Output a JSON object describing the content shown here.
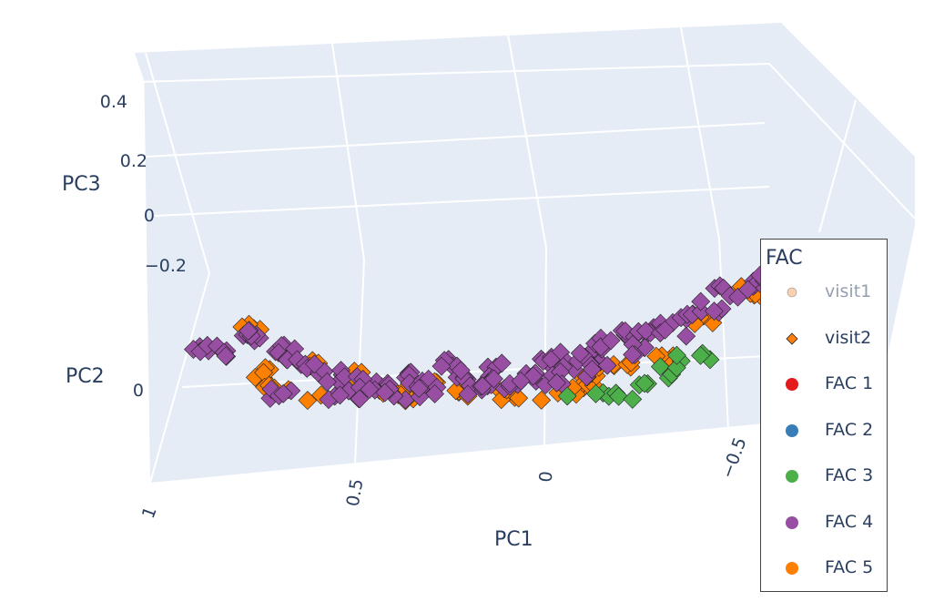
{
  "chart_data": {
    "type": "scatter",
    "dimensions": 3,
    "axes": {
      "x": {
        "label": "PC1",
        "ticks": [
          "1",
          "0.5",
          "0",
          "−0.5"
        ]
      },
      "y": {
        "label": "PC2",
        "ticks": [
          "0"
        ]
      },
      "z": {
        "label": "PC3",
        "ticks": [
          "0.4",
          "0.2",
          "0",
          "−0.2"
        ]
      }
    },
    "grid": true,
    "legend": {
      "title": "FAC",
      "placement": "right",
      "items": [
        {
          "label": "visit1",
          "symbol": "circle",
          "color": "#f4a460",
          "visible": false
        },
        {
          "label": "visit2",
          "symbol": "diamond",
          "color": "#ff7f0e",
          "visible": true
        },
        {
          "label": "FAC 1",
          "symbol": "circle",
          "color": "#e41a1c",
          "visible": true
        },
        {
          "label": "FAC 2",
          "symbol": "circle",
          "color": "#377eb8",
          "visible": true
        },
        {
          "label": "FAC 3",
          "symbol": "circle",
          "color": "#4daf4a",
          "visible": true
        },
        {
          "label": "FAC 4",
          "symbol": "circle",
          "color": "#984ea3",
          "visible": true
        },
        {
          "label": "FAC 5",
          "symbol": "circle",
          "color": "#ff7f00",
          "visible": true
        }
      ]
    },
    "series": [
      {
        "name": "FAC 4",
        "symbol": "diamond",
        "color": "#984ea3",
        "points": [
          [
            0.95,
            0.1,
            0.05
          ],
          [
            0.9,
            0.05,
            0.0
          ],
          [
            0.85,
            0.15,
            0.1
          ],
          [
            0.8,
            0.05,
            0.1
          ],
          [
            0.75,
            0.1,
            0.05
          ],
          [
            0.7,
            0.05,
            -0.05
          ],
          [
            0.65,
            0.0,
            -0.1
          ],
          [
            0.6,
            0.05,
            -0.1
          ],
          [
            0.55,
            0.0,
            -0.2
          ],
          [
            0.5,
            0.0,
            -0.15
          ],
          [
            0.45,
            -0.05,
            -0.2
          ],
          [
            0.4,
            0.05,
            -0.1
          ],
          [
            0.35,
            -0.05,
            -0.15
          ],
          [
            0.3,
            0.0,
            -0.05
          ],
          [
            0.25,
            0.0,
            -0.1
          ],
          [
            0.2,
            0.05,
            -0.05
          ],
          [
            0.15,
            -0.05,
            -0.15
          ],
          [
            0.1,
            0.0,
            -0.1
          ],
          [
            0.05,
            0.05,
            0.0
          ],
          [
            0.0,
            0.0,
            -0.05
          ],
          [
            -0.05,
            0.05,
            0.0
          ],
          [
            -0.1,
            0.0,
            0.05
          ],
          [
            -0.15,
            0.05,
            0.1
          ],
          [
            -0.2,
            0.0,
            0.1
          ],
          [
            -0.25,
            0.1,
            0.15
          ],
          [
            -0.3,
            0.05,
            0.2
          ],
          [
            -0.35,
            0.1,
            0.25
          ],
          [
            -0.4,
            0.05,
            0.3
          ],
          [
            -0.45,
            0.1,
            0.35
          ],
          [
            -0.5,
            0.05,
            0.35
          ],
          [
            0.7,
            -0.1,
            -0.25
          ],
          [
            0.6,
            -0.1,
            -0.3
          ],
          [
            0.5,
            -0.15,
            -0.3
          ],
          [
            0.4,
            -0.1,
            -0.25
          ],
          [
            0.3,
            -0.15,
            -0.25
          ],
          [
            0.2,
            -0.1,
            -0.2
          ],
          [
            0.1,
            -0.15,
            -0.2
          ],
          [
            0.0,
            -0.1,
            -0.15
          ],
          [
            -0.1,
            -0.05,
            -0.1
          ],
          [
            -0.2,
            -0.05,
            0.0
          ]
        ]
      },
      {
        "name": "FAC 5",
        "symbol": "diamond",
        "color": "#ff7f00",
        "points": [
          [
            0.85,
            0.15,
            0.15
          ],
          [
            0.8,
            0.05,
            -0.1
          ],
          [
            0.75,
            0.05,
            -0.15
          ],
          [
            0.65,
            0.05,
            -0.05
          ],
          [
            0.55,
            0.05,
            -0.1
          ],
          [
            0.45,
            0.0,
            -0.2
          ],
          [
            0.4,
            -0.05,
            -0.25
          ],
          [
            0.35,
            0.0,
            -0.15
          ],
          [
            0.25,
            -0.05,
            -0.2
          ],
          [
            0.15,
            0.0,
            -0.2
          ],
          [
            0.05,
            -0.05,
            -0.25
          ],
          [
            0.0,
            -0.1,
            -0.3
          ],
          [
            -0.05,
            0.0,
            -0.15
          ],
          [
            -0.1,
            -0.05,
            -0.1
          ],
          [
            -0.15,
            0.0,
            -0.05
          ],
          [
            -0.25,
            0.05,
            0.0
          ],
          [
            -0.35,
            0.0,
            0.15
          ],
          [
            -0.45,
            0.05,
            0.3
          ],
          [
            -0.5,
            0.05,
            0.3
          ],
          [
            0.6,
            -0.15,
            -0.3
          ],
          [
            0.3,
            -0.15,
            -0.3
          ],
          [
            0.1,
            -0.15,
            -0.3
          ],
          [
            -0.05,
            -0.15,
            -0.25
          ]
        ]
      },
      {
        "name": "FAC 3",
        "symbol": "diamond",
        "color": "#4daf4a",
        "points": [
          [
            -0.05,
            -0.05,
            -0.25
          ],
          [
            -0.1,
            -0.05,
            -0.2
          ],
          [
            -0.15,
            0.0,
            -0.2
          ],
          [
            -0.2,
            -0.05,
            -0.15
          ],
          [
            -0.25,
            0.0,
            -0.1
          ],
          [
            -0.3,
            0.0,
            -0.05
          ],
          [
            -0.35,
            0.05,
            0.0
          ],
          [
            -0.15,
            -0.1,
            -0.3
          ],
          [
            -0.1,
            -0.1,
            -0.3
          ]
        ]
      }
    ]
  }
}
